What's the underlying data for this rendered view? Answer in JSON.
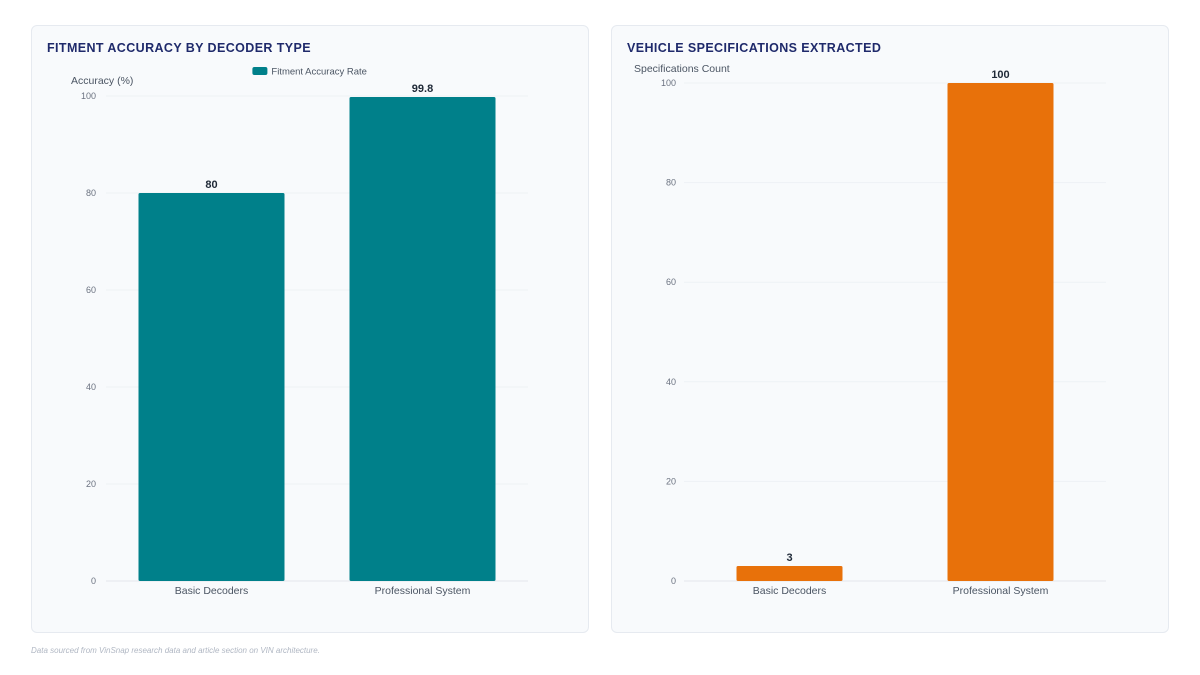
{
  "footnote": "Data sourced from VinSnap research data and article section on VIN architecture.",
  "chart_data": [
    {
      "id": "accuracy",
      "type": "bar",
      "title": "FITMENT ACCURACY BY DECODER TYPE",
      "ylabel": "Accuracy (%)",
      "xlabel": "",
      "categories": [
        "Basic Decoders",
        "Professional System"
      ],
      "series": [
        {
          "name": "Fitment Accuracy Rate",
          "values": [
            80,
            99.8
          ],
          "color": "#00808a"
        }
      ],
      "value_labels": [
        "80",
        "99.8"
      ],
      "ylim": [
        0,
        100
      ],
      "yticks": [
        0,
        20,
        40,
        60,
        80,
        100
      ],
      "grid": true,
      "legend": "top-center"
    },
    {
      "id": "specs",
      "type": "bar",
      "title": "VEHICLE SPECIFICATIONS EXTRACTED",
      "ylabel": "Specifications Count",
      "xlabel": "",
      "categories": [
        "Basic Decoders",
        "Professional System"
      ],
      "series": [
        {
          "values": [
            3,
            100
          ],
          "color": "#e8710a"
        }
      ],
      "value_labels": [
        "3",
        "100"
      ],
      "ylim": [
        0,
        100
      ],
      "yticks": [
        0,
        20,
        40,
        60,
        80,
        100
      ],
      "grid": true,
      "legend": "none"
    }
  ]
}
